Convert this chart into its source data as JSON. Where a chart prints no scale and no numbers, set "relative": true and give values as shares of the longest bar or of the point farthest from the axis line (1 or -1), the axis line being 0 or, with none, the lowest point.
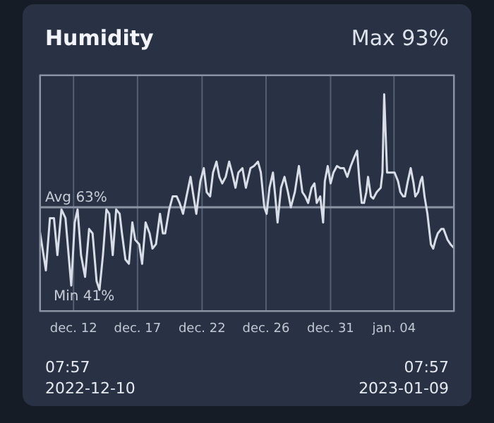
{
  "chart_data": {
    "type": "line",
    "title": "Humidity",
    "color": "#d9dee6",
    "x": [
      "2022-12-10T07:57",
      "2022-12-10T19:00",
      "2022-12-11T02:00",
      "2022-12-11T09:00",
      "2022-12-11T15:00",
      "2022-12-11T22:00",
      "2022-12-12T05:00",
      "2022-12-12T15:00",
      "2022-12-12T21:00",
      "2022-12-13T02:00",
      "2022-12-13T08:00",
      "2022-12-13T15:00",
      "2022-12-13T22:00",
      "2022-12-14T04:00",
      "2022-12-14T11:00",
      "2022-12-14T16:00",
      "2022-12-14T22:00",
      "2022-12-15T04:00",
      "2022-12-15T09:00",
      "2022-12-15T15:00",
      "2022-12-15T21:00",
      "2022-12-16T03:00",
      "2022-12-16T07:00",
      "2022-12-16T13:00",
      "2022-12-16T19:00",
      "2022-12-17T01:00",
      "2022-12-17T06:00",
      "2022-12-17T13:00",
      "2022-12-17T18:00",
      "2022-12-18T00:00",
      "2022-12-18T07:00",
      "2022-12-18T12:00",
      "2022-12-18T18:00",
      "2022-12-19T01:00",
      "2022-12-19T06:00",
      "2022-12-19T10:00",
      "2022-12-19T17:00",
      "2022-12-19T23:00",
      "2022-12-20T06:00",
      "2022-12-20T11:00",
      "2022-12-20T17:00",
      "2022-12-20T23:00",
      "2022-12-21T06:00",
      "2022-12-21T10:00",
      "2022-12-21T16:00",
      "2022-12-21T23:00",
      "2022-12-22T05:00",
      "2022-12-22T10:00",
      "2022-12-22T16:00",
      "2022-12-22T21:00",
      "2022-12-23T03:00",
      "2022-12-23T08:00",
      "2022-12-23T13:00",
      "2022-12-23T19:00",
      "2022-12-24T01:00",
      "2022-12-24T06:00",
      "2022-12-24T12:00",
      "2022-12-24T17:00",
      "2022-12-25T00:00",
      "2022-12-25T06:00",
      "2022-12-25T14:00",
      "2022-12-25T20:00",
      "2022-12-26T03:00",
      "2022-12-26T08:00",
      "2022-12-26T14:00",
      "2022-12-26T18:00",
      "2022-12-26T23:00",
      "2022-12-27T05:00",
      "2022-12-27T09:00",
      "2022-12-27T13:00",
      "2022-12-27T19:00",
      "2022-12-28T01:00",
      "2022-12-28T07:00",
      "2022-12-28T12:00",
      "2022-12-28T19:00",
      "2022-12-29T02:00",
      "2022-12-29T08:00",
      "2022-12-29T13:00",
      "2022-12-29T18:00",
      "2022-12-30T00:00",
      "2022-12-30T05:00",
      "2022-12-30T09:00",
      "2022-12-30T15:00",
      "2022-12-30T20:00",
      "2022-12-30T23:00",
      "2022-12-31T04:00",
      "2022-12-31T09:00",
      "2022-12-31T14:00",
      "2022-12-31T20:00",
      "2023-01-01T02:00",
      "2023-01-01T08:00",
      "2023-01-01T14:00",
      "2023-01-01T20:00",
      "2023-01-02T02:00",
      "2023-01-02T07:00",
      "2023-01-02T11:00",
      "2023-01-02T15:00",
      "2023-01-02T19:00",
      "2023-01-02T23:00",
      "2023-01-03T02:00",
      "2023-01-03T07:00",
      "2023-01-03T11:00",
      "2023-01-03T17:00",
      "2023-01-04T00:00",
      "2023-01-04T03:00",
      "2023-01-04T06:00",
      "2023-01-04T11:00",
      "2023-01-04T17:00",
      "2023-01-05T00:00",
      "2023-01-05T06:00",
      "2023-01-05T10:00",
      "2023-01-05T15:00",
      "2023-01-05T18:00",
      "2023-01-05T23:00",
      "2023-01-06T04:00",
      "2023-01-06T09:00",
      "2023-01-06T12:00",
      "2023-01-06T17:00",
      "2023-01-06T21:00",
      "2023-01-07T00:00",
      "2023-01-07T04:00",
      "2023-01-07T09:00",
      "2023-01-07T15:00",
      "2023-01-07T19:00",
      "2023-01-07T23:00",
      "2023-01-08T03:00",
      "2023-01-08T09:00",
      "2023-01-08T13:00",
      "2023-01-08T20:00",
      "2023-01-09T01:00",
      "2023-01-09T07:57"
    ],
    "values": [
      0.38,
      0.19,
      0.43,
      0.43,
      0.26,
      0.47,
      0.43,
      0.12,
      0.41,
      0.47,
      0.26,
      0.16,
      0.38,
      0.36,
      0.14,
      0.1,
      0.26,
      0.47,
      0.45,
      0.26,
      0.47,
      0.45,
      0.36,
      0.24,
      0.22,
      0.41,
      0.33,
      0.31,
      0.22,
      0.41,
      0.36,
      0.29,
      0.31,
      0.45,
      0.36,
      0.36,
      0.47,
      0.53,
      0.53,
      0.5,
      0.45,
      0.53,
      0.62,
      0.55,
      0.45,
      0.6,
      0.66,
      0.55,
      0.53,
      0.64,
      0.69,
      0.62,
      0.59,
      0.62,
      0.69,
      0.64,
      0.57,
      0.64,
      0.66,
      0.57,
      0.66,
      0.67,
      0.69,
      0.64,
      0.48,
      0.45,
      0.57,
      0.64,
      0.53,
      0.41,
      0.57,
      0.62,
      0.55,
      0.48,
      0.55,
      0.67,
      0.55,
      0.53,
      0.5,
      0.57,
      0.59,
      0.5,
      0.53,
      0.41,
      0.6,
      0.67,
      0.59,
      0.64,
      0.67,
      0.66,
      0.66,
      0.62,
      0.67,
      0.71,
      0.74,
      0.6,
      0.5,
      0.5,
      0.55,
      0.62,
      0.53,
      0.52,
      0.55,
      0.57,
      0.64,
      1,
      0.64,
      0.64,
      0.64,
      0.6,
      0.55,
      0.53,
      0.53,
      0.6,
      0.66,
      0.59,
      0.53,
      0.55,
      0.6,
      0.62,
      0.53,
      0.45,
      0.31,
      0.29,
      0.33,
      0.36,
      0.38,
      0.38,
      0.33,
      0.31,
      0.29
    ],
    "relative": true,
    "xlim": [
      "2022-12-10T07:57",
      "2023-01-09T07:57"
    ],
    "xticks": [
      {
        "value": "2022-12-12T19:00",
        "label": "dec. 12"
      },
      {
        "value": "2022-12-17T10:00",
        "label": "dec. 17"
      },
      {
        "value": "2022-12-22T02:00",
        "label": "dec. 22"
      },
      {
        "value": "2022-12-26T17:00",
        "label": "dec. 26"
      },
      {
        "value": "2022-12-31T09:00",
        "label": "dec. 31"
      },
      {
        "value": "2023-01-04T23:00",
        "label": "jan. 04"
      }
    ],
    "grid": true,
    "ref_lines": [
      {
        "axis": "y",
        "value": 0.48,
        "label": "Avg 63%",
        "color": "#8a94a3"
      }
    ],
    "annotations": [
      "Max 93%",
      "Min 41%",
      "07:57",
      "2022-12-10",
      "07:57",
      "2023-01-09"
    ]
  }
}
